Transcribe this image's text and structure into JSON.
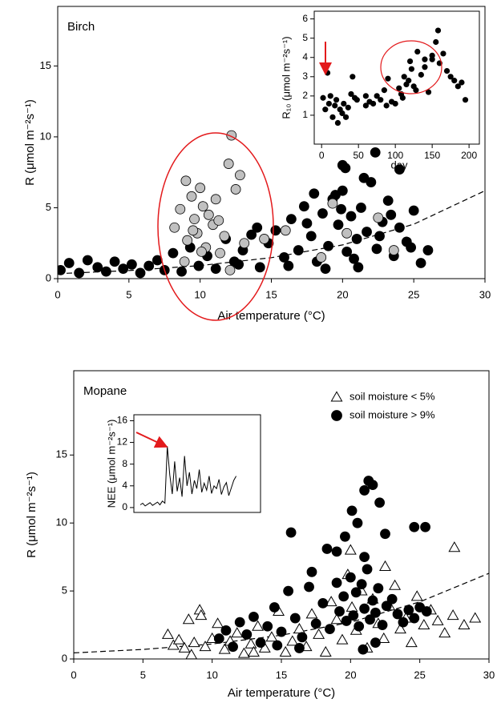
{
  "chart_data": [
    {
      "type": "scatter",
      "label": "Birch",
      "xlabel": "Air temperature (°C)",
      "ylabel": "R (μmol m⁻²s⁻¹)",
      "xlim": [
        0,
        30
      ],
      "ylim": [
        0,
        19.2
      ],
      "xticks": [
        0,
        5,
        10,
        15,
        20,
        25,
        30
      ],
      "yticks": [
        0,
        5,
        10,
        15
      ],
      "series": [
        {
          "color": "#000000",
          "line": "dashed",
          "x": [
            0,
            5,
            10,
            15,
            20,
            25,
            30
          ],
          "values": [
            0.35,
            0.57,
            0.92,
            1.48,
            2.38,
            3.84,
            6.2
          ]
        },
        {
          "color": "#000000",
          "marker": "circle",
          "x": [
            0.2,
            0.8,
            1.5,
            2.1,
            2.8,
            3.4,
            4.0,
            4.6,
            5.2,
            5.8,
            6.4,
            7.0,
            7.5,
            8.1,
            8.7,
            9.3,
            9.9,
            10.5,
            11.1,
            11.8,
            12.4,
            13.0,
            13.6,
            14.2,
            14.8,
            15.3,
            15.9,
            16.4,
            16.9,
            17.3,
            17.8,
            18.2,
            18.6,
            19.0,
            19.3,
            19.7,
            20.0,
            20.3,
            20.6,
            21.0,
            21.3,
            21.7,
            22.0,
            22.4,
            22.8,
            23.2,
            23.6,
            24.0,
            24.5,
            25.0,
            25.5,
            26.0,
            16.2,
            17.5,
            18.8,
            19.5,
            20.8,
            21.5,
            22.6,
            23.4,
            24.8,
            20.0,
            20.2,
            22.3,
            24.0,
            18.0,
            19.9,
            21.1,
            12.7,
            14.0
          ],
          "values": [
            0.6,
            1.1,
            0.4,
            1.3,
            0.8,
            0.5,
            1.2,
            0.7,
            1.0,
            0.4,
            0.9,
            1.3,
            0.6,
            1.8,
            0.5,
            2.2,
            0.9,
            1.6,
            0.7,
            2.8,
            1.2,
            2.0,
            3.1,
            0.8,
            2.5,
            3.4,
            1.5,
            4.2,
            2.0,
            5.1,
            3.0,
            1.2,
            4.6,
            2.3,
            5.6,
            3.8,
            6.2,
            1.9,
            4.4,
            2.8,
            5.0,
            3.3,
            6.8,
            2.1,
            4.0,
            5.5,
            1.6,
            3.6,
            2.6,
            4.8,
            1.1,
            2.0,
            0.9,
            3.9,
            0.7,
            5.9,
            1.4,
            7.1,
            3.0,
            4.5,
            2.2,
            8.0,
            7.8,
            8.9,
            7.7,
            6.0,
            4.9,
            0.8,
            1.0,
            3.6
          ]
        },
        {
          "color": "#c0c0c0",
          "marker": "circle",
          "x": [
            8.2,
            8.6,
            9.0,
            9.1,
            9.4,
            9.6,
            9.8,
            10.0,
            10.2,
            10.4,
            10.6,
            10.9,
            11.1,
            11.4,
            11.7,
            12.0,
            12.2,
            12.5,
            12.8,
            13.1,
            8.9,
            10.1,
            11.3,
            12.1,
            9.5,
            14.5,
            16.0,
            18.5,
            20.3,
            22.5,
            23.6,
            19.3
          ],
          "values": [
            3.6,
            4.9,
            6.9,
            2.7,
            5.8,
            4.2,
            3.2,
            6.4,
            5.1,
            2.2,
            4.5,
            3.8,
            5.6,
            1.8,
            3.0,
            8.1,
            10.1,
            6.3,
            7.3,
            2.5,
            1.2,
            1.9,
            4.1,
            0.6,
            3.4,
            2.8,
            3.4,
            1.5,
            3.2,
            4.3,
            2.0,
            5.3
          ]
        }
      ]
    },
    {
      "type": "scatter",
      "xlabel": "day",
      "ylabel": "R₁₀ (μmol m⁻²s⁻¹)",
      "xlim": [
        -10,
        214
      ],
      "ylim": [
        -0.5,
        6.4
      ],
      "xticks": [
        0,
        50,
        100,
        150,
        200
      ],
      "yticks": [
        1,
        2,
        3,
        4,
        5,
        6
      ],
      "series": [
        {
          "color": "#000000",
          "marker": "circle",
          "x": [
            2,
            5,
            8,
            10,
            12,
            15,
            18,
            20,
            22,
            25,
            28,
            30,
            33,
            36,
            40,
            42,
            45,
            48,
            60,
            65,
            70,
            75,
            80,
            85,
            88,
            90,
            95,
            100,
            105,
            108,
            112,
            115,
            120,
            125,
            128,
            130,
            135,
            140,
            145,
            150,
            155,
            158,
            160,
            165,
            170,
            175,
            180,
            185,
            190,
            195,
            110,
            118,
            122,
            140,
            150,
            60
          ],
          "values": [
            1.9,
            1.3,
            3.2,
            1.6,
            2.0,
            0.9,
            1.5,
            1.8,
            0.6,
            1.3,
            1.1,
            1.6,
            0.9,
            1.4,
            2.1,
            3.0,
            1.9,
            1.8,
            1.5,
            1.7,
            1.6,
            2.0,
            1.8,
            2.3,
            1.5,
            2.9,
            1.7,
            1.6,
            2.4,
            2.1,
            3.0,
            2.6,
            3.8,
            2.5,
            2.3,
            4.3,
            3.1,
            3.5,
            2.2,
            3.9,
            4.8,
            5.4,
            3.7,
            4.2,
            3.3,
            3.0,
            2.8,
            2.5,
            2.7,
            1.8,
            1.9,
            2.8,
            3.4,
            3.9,
            4.1,
            2.0
          ]
        }
      ]
    },
    {
      "type": "scatter",
      "label": "Mopane",
      "xlabel": "Air temperature (°C)",
      "ylabel": "R (μmol m⁻²s⁻¹)",
      "xlim": [
        0,
        30
      ],
      "ylim": [
        0,
        21.2
      ],
      "xticks": [
        0,
        5,
        10,
        15,
        20,
        25,
        30
      ],
      "yticks": [
        0,
        5,
        10,
        15
      ],
      "legend": "upper right",
      "series": [
        {
          "color": "#000000",
          "line": "dashed",
          "x": [
            0,
            5,
            10,
            15,
            20,
            25,
            30
          ],
          "values": [
            0.45,
            0.7,
            1.1,
            1.75,
            2.7,
            4.2,
            6.3
          ]
        },
        {
          "name": "soil moisture < 5%",
          "color": "#000000",
          "marker": "triangle",
          "x": [
            6.8,
            7.2,
            7.6,
            8.0,
            8.3,
            8.7,
            9.1,
            9.5,
            10.0,
            10.4,
            10.9,
            11.3,
            11.8,
            12.3,
            12.8,
            13.3,
            13.8,
            14.3,
            14.8,
            15.3,
            15.8,
            16.3,
            16.8,
            17.2,
            17.7,
            18.2,
            18.6,
            19.0,
            19.4,
            19.8,
            20.1,
            20.4,
            20.8,
            21.2,
            21.6,
            22.0,
            22.4,
            22.8,
            23.2,
            23.6,
            24.0,
            24.4,
            24.8,
            25.3,
            25.8,
            26.3,
            26.8,
            27.4,
            28.2,
            29.0,
            8.5,
            9.2,
            13.0,
            20.0,
            27.5,
            22.5
          ],
          "values": [
            1.8,
            1.0,
            1.4,
            0.8,
            2.9,
            1.2,
            3.6,
            0.9,
            1.5,
            2.6,
            0.7,
            1.3,
            1.9,
            0.4,
            1.1,
            2.4,
            0.8,
            1.6,
            3.5,
            0.5,
            1.3,
            2.2,
            0.9,
            3.3,
            1.8,
            0.5,
            4.2,
            2.9,
            1.4,
            6.2,
            3.8,
            2.1,
            5.0,
            0.8,
            4.4,
            2.6,
            1.5,
            3.9,
            5.4,
            2.2,
            3.0,
            1.2,
            4.6,
            2.5,
            3.6,
            2.8,
            1.9,
            3.2,
            2.5,
            3.0,
            0.3,
            3.2,
            0.5,
            8.0,
            8.2,
            6.8
          ]
        },
        {
          "name": "soil moisture > 9%",
          "color": "#000000",
          "marker": "circle",
          "x": [
            10.5,
            11.0,
            11.5,
            12.0,
            12.5,
            13.0,
            13.5,
            14.0,
            14.5,
            15.0,
            15.5,
            16.0,
            16.5,
            17.0,
            17.5,
            18.0,
            18.5,
            19.0,
            19.2,
            19.5,
            19.7,
            20.0,
            20.2,
            20.4,
            20.6,
            20.8,
            21.0,
            21.2,
            21.4,
            21.6,
            21.8,
            22.0,
            22.3,
            22.6,
            23.0,
            23.4,
            23.8,
            24.2,
            24.6,
            25.0,
            25.5,
            15.7,
            18.3,
            19.6,
            20.1,
            20.5,
            21.0,
            21.3,
            21.6,
            22.1,
            22.5,
            24.6,
            25.4,
            21.0,
            19.0,
            17.2,
            14.7,
            16.3,
            20.9,
            21.8
          ],
          "values": [
            1.5,
            2.1,
            0.9,
            2.7,
            1.8,
            3.1,
            1.2,
            2.4,
            3.8,
            2.0,
            5.0,
            3.0,
            1.6,
            5.3,
            2.6,
            4.1,
            2.2,
            5.6,
            3.5,
            4.6,
            2.8,
            6.0,
            3.2,
            4.9,
            2.4,
            5.5,
            3.7,
            6.6,
            2.9,
            4.3,
            3.4,
            5.2,
            2.5,
            3.9,
            4.4,
            3.3,
            2.7,
            3.6,
            3.0,
            3.8,
            3.5,
            9.3,
            8.1,
            9.0,
            10.9,
            10.0,
            12.4,
            13.1,
            12.8,
            11.5,
            9.2,
            9.7,
            9.7,
            7.5,
            7.9,
            6.4,
            1.0,
            0.8,
            0.7,
            1.2
          ]
        }
      ]
    },
    {
      "type": "line",
      "ylabel": "NEE (μmol m⁻²s⁻¹)",
      "xlim": [
        -2.6,
        48.9
      ],
      "ylim": [
        -0.9,
        17.1
      ],
      "yticks": [
        0,
        4,
        8,
        12,
        16
      ],
      "series": [
        {
          "color": "#000000",
          "x": [
            0,
            1,
            2,
            3,
            4,
            5,
            6,
            7,
            8,
            9,
            10,
            11,
            12,
            13,
            14,
            15,
            16,
            17,
            18,
            19,
            20,
            21,
            22,
            23,
            24,
            25,
            26,
            27,
            28,
            29,
            30,
            31,
            32,
            33,
            34,
            35,
            36,
            37,
            38,
            39
          ],
          "values": [
            0.5,
            0.8,
            0.3,
            0.6,
            0.9,
            0.4,
            0.7,
            1.0,
            0.5,
            1.2,
            0.8,
            11.3,
            6.0,
            2.5,
            8.5,
            3.0,
            5.5,
            2.0,
            9.5,
            4.0,
            6.5,
            2.5,
            5.0,
            3.5,
            7.0,
            2.8,
            4.5,
            3.2,
            5.8,
            2.6,
            4.0,
            3.5,
            5.2,
            2.4,
            3.8,
            4.6,
            2.2,
            3.6,
            5.0,
            5.8
          ]
        }
      ]
    }
  ]
}
